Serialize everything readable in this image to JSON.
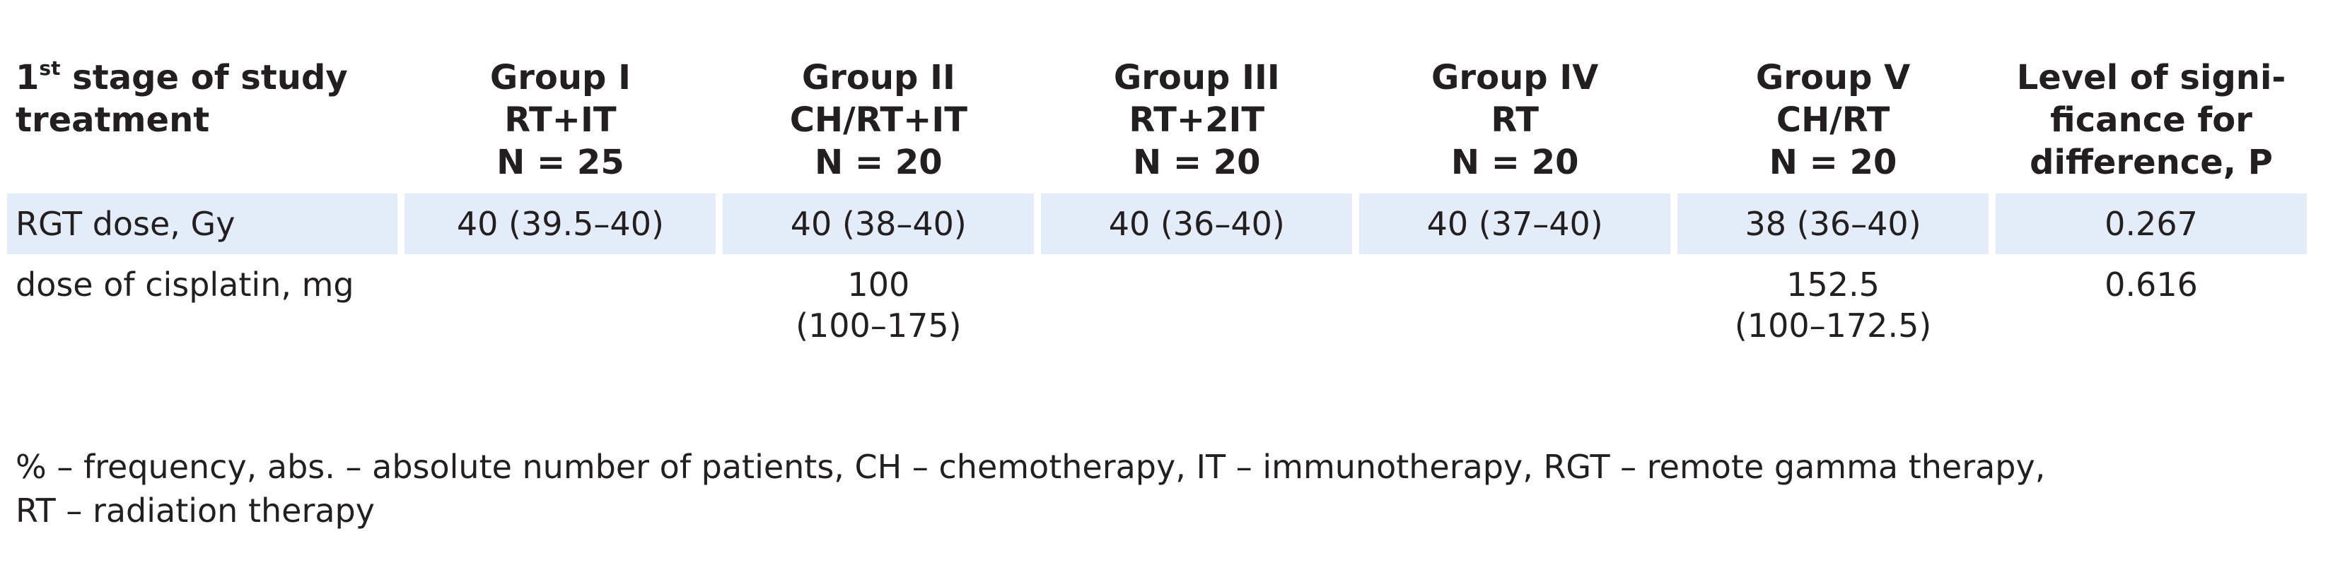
{
  "table": {
    "header": {
      "first_col": {
        "line1_main": "1",
        "line1_sup": "st",
        "line1_rest": " stage of study",
        "line2": "treatment"
      },
      "groups": [
        {
          "name": "Group I",
          "therapy": "RT+IT",
          "n": "N = 25"
        },
        {
          "name": "Group II",
          "therapy": "CH/RT+IT",
          "n": "N = 20"
        },
        {
          "name": "Group III",
          "therapy": "RT+2IT",
          "n": "N = 20"
        },
        {
          "name": "Group IV",
          "therapy": "RT",
          "n": "N = 20"
        },
        {
          "name": "Group V",
          "therapy": "CH/RT",
          "n": "N = 20"
        }
      ],
      "last_col": {
        "line1": "Level of signi-",
        "line2": "ficance for",
        "line3": "difference, P"
      }
    },
    "rows": [
      {
        "label": "RGT dose, Gy",
        "cells": [
          [
            "40 (39.5–40)"
          ],
          [
            "40 (38–40)"
          ],
          [
            "40 (36–40)"
          ],
          [
            "40 (37–40)"
          ],
          [
            "38 (36–40)"
          ]
        ],
        "p": "0.267"
      },
      {
        "label": "dose of cisplatin, mg",
        "cells": [
          [],
          [
            "100",
            "(100–175)"
          ],
          [],
          [],
          [
            "152.5",
            "(100–172.5)"
          ]
        ],
        "p": "0.616"
      }
    ]
  },
  "footnote": {
    "line1": "% – frequency, abs. – absolute number of patients, CH – chemotherapy, IT – immunotherapy, RGT – remote gamma therapy,",
    "line2": "RT – radiation therapy"
  }
}
